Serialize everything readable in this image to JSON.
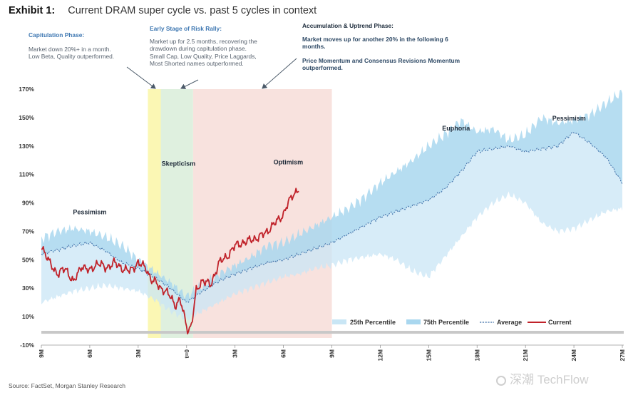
{
  "header": {
    "exhibit": "Exhibit 1:",
    "title": "Current DRAM super cycle vs. past 5 cycles in context"
  },
  "annotations": {
    "capitulation": {
      "title": "Capitulation Phase:",
      "line1": "Market down 20%+ in a month.",
      "line2": "Low Beta, Quality outperformed."
    },
    "early": {
      "title": "Early Stage of Risk Rally:",
      "line1": "Market up for 2.5 months, recovering the",
      "line2": "drawdown during capitulation phase.",
      "line3": "Small Cap, Low Quality, Price Laggards,",
      "line4": "Most Shorted names outperformed."
    },
    "accumulation": {
      "title": "Accumulation & Uptrend Phase:",
      "p1a": "Market moves up for another 20% in the following 6",
      "p1b": "months.",
      "p2a": "Price Momentum and Consensus Revisions Momentum",
      "p2b": "outperformed."
    }
  },
  "source": "Source: FactSet, Morgan Stanley Research",
  "watermark": "深潮 TechFlow",
  "colors": {
    "capitulation_zone": "#fbf7b4",
    "early_zone": "#dff0df",
    "optimism_zone": "#f8e2de",
    "band_outer": "#c9e6f5",
    "band_inner": "#a9d7ef",
    "average": "#3f6fa8",
    "current": "#c0222a"
  },
  "chart_data": {
    "type": "line",
    "title": "Current DRAM super cycle vs. past 5 cycles in context",
    "ylim": [
      -10,
      170
    ],
    "y_ticks": [
      "170%",
      "150%",
      "130%",
      "110%",
      "90%",
      "70%",
      "50%",
      "30%",
      "10%",
      "-10%"
    ],
    "x_ticks": [
      "9M",
      "6M",
      "3M",
      "t=0",
      "3M",
      "6M",
      "9M",
      "12M",
      "15M",
      "18M",
      "21M",
      "24M",
      "27M"
    ],
    "x_tick_months": [
      -9,
      -6,
      -3,
      0,
      3,
      6,
      9,
      12,
      15,
      18,
      21,
      24,
      27
    ],
    "phase_labels": [
      "Pessimism",
      "Skepticism",
      "Optimism",
      "Euphoria",
      "Pessimism"
    ],
    "phase_label_points": [
      [
        -6,
        82
      ],
      [
        -0.5,
        116
      ],
      [
        6.3,
        117
      ],
      [
        16.7,
        141
      ],
      [
        23.7,
        148
      ]
    ],
    "zones": {
      "capitulation": [
        -2.4,
        -1.6
      ],
      "early_stage": [
        -1.6,
        0.4
      ],
      "optimism": [
        0.4,
        9
      ]
    },
    "legend": [
      "25th Percentile",
      "75th Percentile",
      "Average",
      "Current"
    ],
    "average": {
      "x": [
        -9,
        -8,
        -7,
        -6,
        -5,
        -4,
        -3,
        -2,
        -1,
        0,
        1,
        2,
        3,
        4,
        5,
        6,
        7,
        8,
        9,
        10,
        11,
        12,
        13,
        14,
        15,
        16,
        17,
        18,
        19,
        20,
        21,
        22,
        23,
        24,
        25,
        26,
        27
      ],
      "y": [
        54,
        57,
        60,
        62,
        56,
        48,
        44,
        38,
        30,
        20,
        28,
        35,
        40,
        44,
        48,
        50,
        54,
        58,
        62,
        68,
        74,
        80,
        84,
        88,
        92,
        100,
        112,
        126,
        128,
        130,
        126,
        128,
        130,
        140,
        132,
        122,
        104
      ]
    },
    "p75": {
      "x": [
        -9,
        -8,
        -7,
        -6,
        -5,
        -4,
        -3,
        -2,
        -1,
        0,
        1,
        2,
        3,
        4,
        5,
        6,
        7,
        8,
        9,
        10,
        11,
        12,
        13,
        14,
        15,
        16,
        17,
        18,
        19,
        20,
        21,
        22,
        23,
        24,
        25,
        26,
        27
      ],
      "y": [
        65,
        70,
        72,
        70,
        66,
        60,
        50,
        42,
        34,
        24,
        32,
        40,
        46,
        52,
        60,
        62,
        68,
        74,
        80,
        86,
        94,
        104,
        112,
        120,
        130,
        138,
        148,
        140,
        142,
        134,
        138,
        150,
        146,
        148,
        152,
        160,
        168
      ]
    },
    "p25": {
      "x": [
        -9,
        -8,
        -7,
        -6,
        -5,
        -4,
        -3,
        -2,
        -1,
        0,
        1,
        2,
        3,
        4,
        5,
        6,
        7,
        8,
        9,
        10,
        11,
        12,
        13,
        14,
        15,
        16,
        17,
        18,
        19,
        20,
        21,
        22,
        23,
        24,
        25,
        26,
        27
      ],
      "y": [
        20,
        24,
        28,
        30,
        32,
        30,
        28,
        22,
        14,
        8,
        14,
        20,
        26,
        30,
        34,
        38,
        40,
        44,
        46,
        50,
        52,
        54,
        50,
        42,
        38,
        52,
        66,
        80,
        90,
        96,
        90,
        76,
        70,
        72,
        78,
        84,
        86
      ]
    },
    "current": {
      "x": [
        -9,
        -8.5,
        -8,
        -7.5,
        -7,
        -6.5,
        -6,
        -5.5,
        -5,
        -4.5,
        -4,
        -3.5,
        -3,
        -2.5,
        -2.2,
        -1.9,
        -1.6,
        -1.3,
        -1,
        -0.7,
        -0.4,
        -0.1,
        0.1,
        0.3,
        0.6,
        1,
        1.5,
        2,
        2.5,
        3,
        3.5,
        4,
        4.5,
        5,
        5.5,
        6,
        6.3,
        6.6,
        7
      ],
      "y": [
        60,
        48,
        40,
        44,
        34,
        46,
        42,
        48,
        44,
        48,
        44,
        42,
        48,
        44,
        36,
        34,
        30,
        28,
        24,
        18,
        22,
        8,
        0,
        4,
        28,
        36,
        32,
        48,
        52,
        60,
        62,
        64,
        66,
        70,
        76,
        82,
        90,
        96,
        100
      ]
    }
  }
}
